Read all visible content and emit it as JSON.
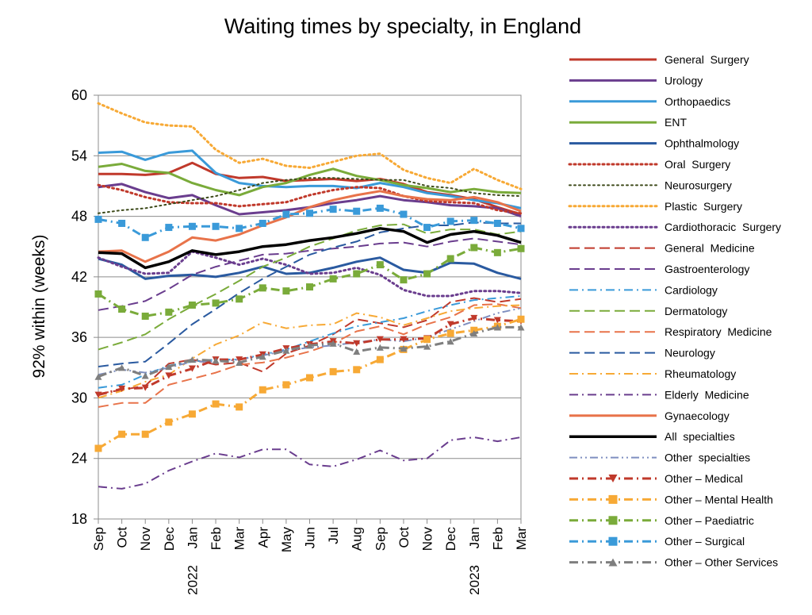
{
  "chart_data": {
    "type": "line",
    "title": "Waiting times by specialty, in England",
    "xlabel": "",
    "ylabel": "92% within (weeks)",
    "ylim": [
      18,
      60
    ],
    "yticks": [
      18,
      24,
      30,
      36,
      42,
      48,
      54,
      60
    ],
    "grid": "horizontal",
    "legend_position": "right",
    "categories": [
      "Sep",
      "Oct",
      "Nov",
      "Dec",
      "Jan",
      "Feb",
      "Mar",
      "Apr",
      "May",
      "Jun",
      "Jul",
      "Aug",
      "Sep",
      "Oct",
      "Nov",
      "Dec",
      "Jan",
      "Feb",
      "Mar"
    ],
    "year_labels": [
      {
        "index": 4,
        "label": "2022"
      },
      {
        "index": 16,
        "label": "2023"
      }
    ],
    "series": [
      {
        "name": "General  Surgery",
        "color": "#c0392b",
        "dash": "solid",
        "width": 3,
        "marker": "none",
        "values": [
          52.2,
          52.2,
          52.1,
          52.3,
          53.3,
          52.2,
          51.8,
          51.9,
          51.5,
          51.6,
          51.7,
          51.5,
          51.7,
          51.2,
          50.4,
          50.1,
          49.7,
          48.9,
          48.2
        ]
      },
      {
        "name": "Urology",
        "color": "#6a3d8e",
        "dash": "solid",
        "width": 3,
        "marker": "none",
        "values": [
          50.9,
          51.2,
          50.4,
          49.8,
          50.1,
          49.1,
          48.2,
          48.4,
          48.6,
          48.9,
          49.3,
          49.6,
          50.0,
          49.6,
          49.4,
          49.1,
          49.0,
          48.8,
          48.0
        ]
      },
      {
        "name": "Orthopaedics",
        "color": "#3a9ad9",
        "dash": "solid",
        "width": 3,
        "marker": "none",
        "values": [
          54.3,
          54.4,
          53.6,
          54.3,
          54.5,
          52.3,
          51.3,
          51.0,
          50.9,
          51.0,
          51.0,
          50.8,
          51.3,
          50.9,
          50.3,
          50.0,
          49.6,
          49.3,
          48.8
        ]
      },
      {
        "name": "ENT",
        "color": "#7aab3a",
        "dash": "solid",
        "width": 3,
        "marker": "none",
        "values": [
          52.9,
          53.2,
          52.5,
          52.3,
          51.3,
          50.6,
          50.1,
          50.9,
          51.3,
          52.1,
          52.7,
          52.0,
          51.6,
          51.1,
          50.8,
          50.4,
          50.7,
          50.4,
          50.3
        ]
      },
      {
        "name": "Ophthalmology",
        "color": "#2a5aa0",
        "dash": "solid",
        "width": 3,
        "marker": "none",
        "values": [
          43.8,
          43.2,
          41.8,
          42.1,
          42.2,
          42.0,
          42.4,
          43.0,
          42.3,
          42.4,
          42.9,
          43.5,
          43.9,
          42.7,
          42.4,
          43.4,
          43.3,
          42.4,
          41.8
        ]
      },
      {
        "name": "Oral  Surgery",
        "color": "#c0392b",
        "dash": "dot",
        "width": 3,
        "marker": "none",
        "values": [
          51.1,
          50.6,
          49.9,
          49.4,
          49.3,
          49.3,
          49.0,
          49.2,
          49.4,
          50.1,
          50.6,
          50.9,
          50.8,
          50.0,
          49.5,
          49.4,
          49.3,
          48.6,
          48.3
        ]
      },
      {
        "name": "Neurosurgery",
        "color": "#3d4a1a",
        "dash": "dot",
        "width": 2,
        "marker": "none",
        "values": [
          48.3,
          48.6,
          48.8,
          49.2,
          49.6,
          50.0,
          50.6,
          51.3,
          51.6,
          51.8,
          51.8,
          51.7,
          51.6,
          51.6,
          51.0,
          50.8,
          50.3,
          50.1,
          50.0
        ]
      },
      {
        "name": "Plastic  Surgery",
        "color": "#f7a935",
        "dash": "dot",
        "width": 3,
        "marker": "none",
        "values": [
          59.2,
          58.2,
          57.3,
          57.0,
          56.9,
          54.6,
          53.3,
          53.7,
          53.0,
          52.8,
          53.4,
          54.0,
          54.2,
          52.6,
          51.8,
          51.3,
          52.7,
          51.6,
          50.7
        ]
      },
      {
        "name": "Cardiothoracic  Surgery",
        "color": "#6a3d8e",
        "dash": "dot",
        "width": 3,
        "marker": "none",
        "values": [
          43.9,
          43.0,
          42.3,
          42.4,
          44.5,
          43.9,
          43.2,
          43.8,
          43.2,
          42.3,
          42.4,
          42.9,
          42.2,
          40.7,
          40.1,
          40.1,
          40.6,
          40.6,
          40.4
        ]
      },
      {
        "name": "General  Medicine",
        "color": "#c0392b",
        "dash": "longdash",
        "width": 2,
        "marker": "none",
        "values": [
          30.4,
          30.8,
          31.2,
          33.4,
          33.8,
          33.3,
          33.5,
          32.6,
          34.4,
          35.2,
          36.3,
          37.8,
          37.4,
          37.0,
          37.7,
          39.5,
          39.9,
          39.5,
          39.8
        ]
      },
      {
        "name": "Gastroenterology",
        "color": "#6a3d8e",
        "dash": "longdash",
        "width": 2,
        "marker": "none",
        "values": [
          38.7,
          39.1,
          39.6,
          40.8,
          42.2,
          43.0,
          43.6,
          44.2,
          44.3,
          44.6,
          44.8,
          45.0,
          45.3,
          45.4,
          45.0,
          45.5,
          45.8,
          45.5,
          45.2
        ]
      },
      {
        "name": "Cardiology",
        "color": "#3a9ad9",
        "dash": "dashdot",
        "width": 2,
        "marker": "none",
        "values": [
          31.0,
          31.3,
          32.3,
          33.2,
          33.6,
          33.8,
          33.8,
          34.3,
          34.8,
          35.6,
          36.4,
          37.1,
          37.5,
          37.9,
          38.6,
          39.2,
          39.7,
          39.9,
          40.1
        ]
      },
      {
        "name": "Dermatology",
        "color": "#7aab3a",
        "dash": "longdash",
        "width": 2,
        "marker": "none",
        "values": [
          34.8,
          35.5,
          36.3,
          37.8,
          39.1,
          40.3,
          41.6,
          43.0,
          43.9,
          45.0,
          45.8,
          46.6,
          47.1,
          47.2,
          46.3,
          46.7,
          46.7,
          46.2,
          46.5
        ]
      },
      {
        "name": "Respiratory  Medicine",
        "color": "#e8734a",
        "dash": "longdash",
        "width": 2,
        "marker": "none",
        "values": [
          29.1,
          29.5,
          29.5,
          31.3,
          31.9,
          32.5,
          33.3,
          33.5,
          34.0,
          34.6,
          35.4,
          36.6,
          37.1,
          36.3,
          37.3,
          38.0,
          39.2,
          39.3,
          38.9
        ]
      },
      {
        "name": "Neurology",
        "color": "#2a5aa0",
        "dash": "longdash",
        "width": 2,
        "marker": "none",
        "values": [
          33.1,
          33.4,
          33.6,
          35.4,
          37.3,
          38.8,
          40.4,
          41.8,
          43.0,
          44.2,
          44.9,
          45.5,
          46.4,
          46.8,
          47.1,
          47.1,
          47.4,
          47.3,
          47.3
        ]
      },
      {
        "name": "Rheumatology",
        "color": "#f7a935",
        "dash": "dashdot",
        "width": 2,
        "marker": "none",
        "values": [
          30.0,
          30.7,
          31.6,
          32.3,
          33.9,
          35.3,
          36.2,
          37.5,
          36.9,
          37.2,
          37.3,
          38.4,
          38.0,
          37.2,
          37.9,
          38.6,
          38.9,
          39.1,
          39.2
        ]
      },
      {
        "name": "Elderly  Medicine",
        "color": "#6a3d8e",
        "dash": "dashdot",
        "width": 2,
        "marker": "none",
        "values": [
          21.2,
          21.0,
          21.5,
          22.8,
          23.7,
          24.5,
          24.1,
          24.9,
          24.9,
          23.4,
          23.2,
          23.9,
          24.8,
          23.8,
          24.0,
          25.8,
          26.1,
          25.7,
          26.1
        ]
      },
      {
        "name": "Gynaecology",
        "color": "#e8734a",
        "dash": "solid",
        "width": 3,
        "marker": "none",
        "values": [
          44.5,
          44.6,
          43.5,
          44.5,
          45.9,
          45.6,
          46.2,
          47.1,
          47.9,
          48.9,
          49.6,
          50.1,
          50.5,
          50.0,
          49.7,
          49.6,
          49.9,
          49.4,
          48.5
        ]
      },
      {
        "name": "All  specialties",
        "color": "#000000",
        "dash": "solid",
        "width": 3.5,
        "marker": "none",
        "values": [
          44.4,
          44.3,
          42.9,
          43.5,
          44.6,
          44.2,
          44.5,
          45.0,
          45.2,
          45.6,
          45.9,
          46.3,
          46.8,
          46.5,
          45.4,
          46.2,
          46.5,
          46.1,
          45.4
        ]
      },
      {
        "name": "Other  specialties",
        "color": "#7f8fc0",
        "dash": "dashdotdot",
        "width": 2,
        "marker": "none",
        "values": [
          32.3,
          32.8,
          32.5,
          33.0,
          33.6,
          33.6,
          33.8,
          34.2,
          34.7,
          35.0,
          35.2,
          35.5,
          35.8,
          35.6,
          36.0,
          36.8,
          37.6,
          38.4,
          38.9
        ]
      },
      {
        "name": "Other – Medical",
        "color": "#c0392b",
        "dash": "dashdot",
        "width": 3,
        "marker": "triangle-down",
        "values": [
          30.3,
          30.9,
          31.0,
          32.2,
          32.9,
          33.8,
          33.8,
          34.3,
          34.9,
          35.3,
          35.6,
          35.4,
          35.8,
          35.8,
          35.9,
          37.3,
          37.9,
          37.7,
          37.6
        ]
      },
      {
        "name": "Other – Mental Health",
        "color": "#f7a935",
        "dash": "dashdot",
        "width": 3,
        "marker": "square",
        "values": [
          25.0,
          26.4,
          26.4,
          27.6,
          28.4,
          29.4,
          29.1,
          30.8,
          31.3,
          32.0,
          32.6,
          32.8,
          33.8,
          34.8,
          35.8,
          36.4,
          36.7,
          37.1,
          37.8
        ]
      },
      {
        "name": "Other – Paediatric",
        "color": "#7aab3a",
        "dash": "dashdot",
        "width": 3,
        "marker": "square",
        "values": [
          40.3,
          38.8,
          38.1,
          38.5,
          39.2,
          39.4,
          39.8,
          40.9,
          40.6,
          41.0,
          41.8,
          42.3,
          43.2,
          41.7,
          42.3,
          43.8,
          44.9,
          44.4,
          44.8
        ]
      },
      {
        "name": "Other – Surgical",
        "color": "#3a9ad9",
        "dash": "dashdot",
        "width": 3,
        "marker": "square",
        "values": [
          47.7,
          47.3,
          45.9,
          46.9,
          47.0,
          47.0,
          46.8,
          47.3,
          48.2,
          48.3,
          48.7,
          48.5,
          48.8,
          48.2,
          46.9,
          47.5,
          47.6,
          47.3,
          46.8
        ]
      },
      {
        "name": "Other – Other Services",
        "color": "#7f7f7f",
        "dash": "dashdot",
        "width": 3,
        "marker": "triangle-up",
        "values": [
          32.1,
          33.0,
          32.2,
          33.1,
          33.8,
          33.7,
          33.5,
          34.1,
          34.7,
          35.2,
          35.4,
          34.6,
          35.0,
          34.9,
          35.1,
          35.6,
          36.4,
          37.0,
          37.0
        ]
      }
    ]
  }
}
